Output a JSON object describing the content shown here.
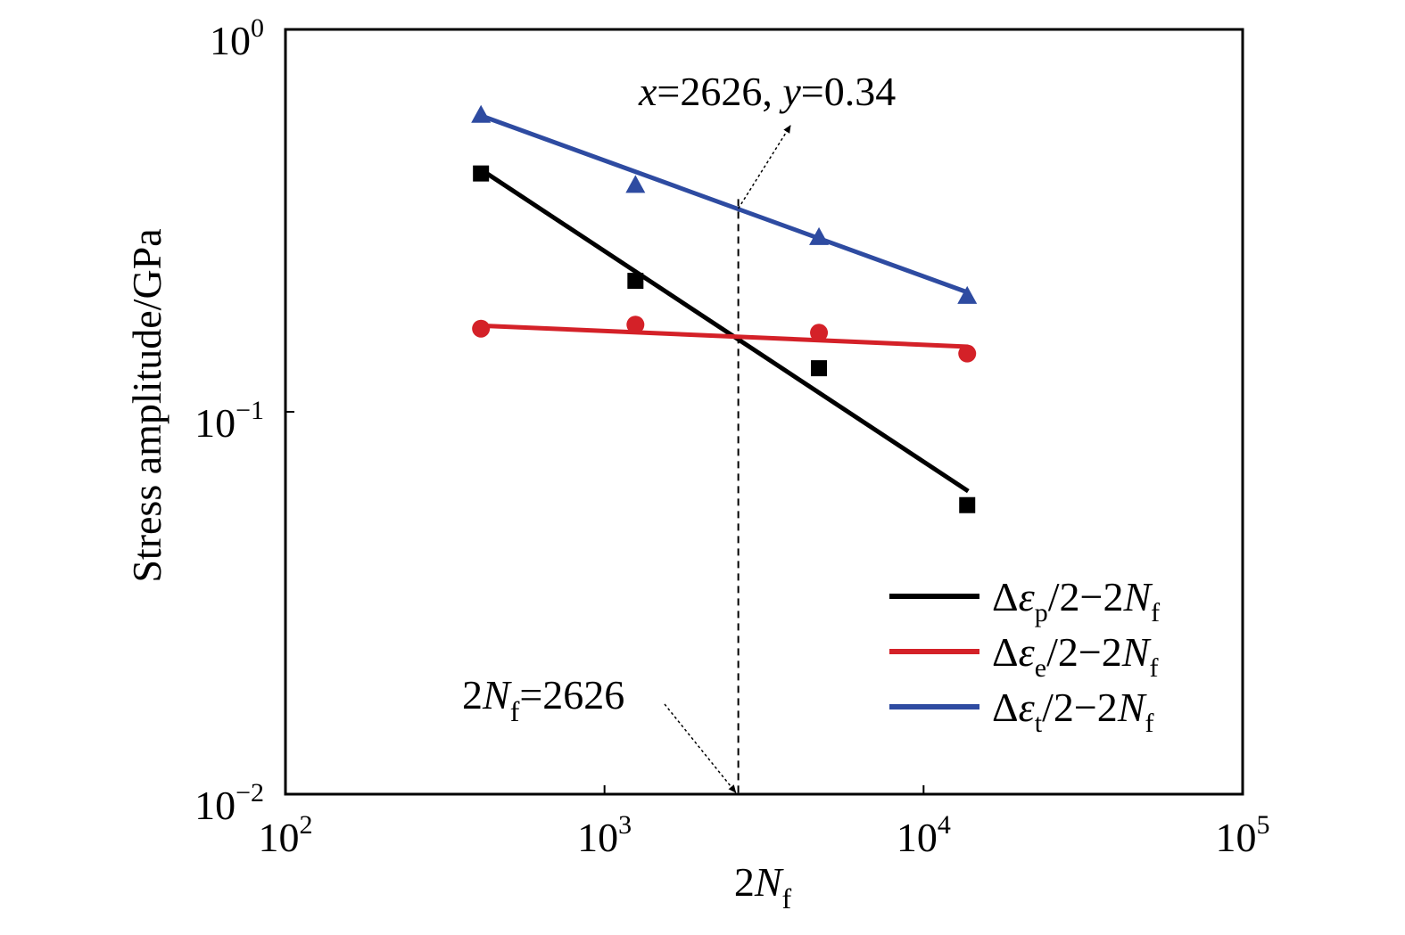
{
  "chart_data": {
    "type": "scatter",
    "xscale": "log",
    "yscale": "log",
    "xlim": [
      100,
      100000
    ],
    "ylim": [
      0.01,
      1
    ],
    "xlabel": "2N_f",
    "ylabel": "Stress amplitude/GPa",
    "xticks": [
      {
        "value": 100,
        "base": "10",
        "exp": "2"
      },
      {
        "value": 1000,
        "base": "10",
        "exp": "3"
      },
      {
        "value": 10000,
        "base": "10",
        "exp": "4"
      },
      {
        "value": 100000,
        "base": "10",
        "exp": "5"
      }
    ],
    "yticks": [
      {
        "value": 1,
        "base": "10",
        "exp": "0"
      },
      {
        "value": 0.1,
        "base": "10",
        "exp": "−1"
      },
      {
        "value": 0.01,
        "base": "10",
        "exp": "−2"
      }
    ],
    "series": [
      {
        "name": "Δεp/2−2Nf",
        "legend": {
          "pre": "Δ",
          "eps": "ε",
          "sub": "p",
          "mid": "/2−2",
          "N": "N",
          "nsub": "f"
        },
        "color": "#000000",
        "marker": "square",
        "x": [
          410,
          1250,
          4700,
          13700
        ],
        "y": [
          0.42,
          0.22,
          0.13,
          0.057
        ],
        "fit": {
          "x": [
            410,
            13800
          ],
          "y": [
            0.43,
            0.062
          ]
        }
      },
      {
        "name": "Δεe/2−2Nf",
        "legend": {
          "pre": "Δ",
          "eps": "ε",
          "sub": "e",
          "mid": "/2−2",
          "N": "N",
          "nsub": "f"
        },
        "color": "#d42128",
        "marker": "circle",
        "x": [
          410,
          1250,
          4700,
          13700
        ],
        "y": [
          0.165,
          0.169,
          0.161,
          0.142
        ],
        "fit": {
          "x": [
            410,
            13800
          ],
          "y": [
            0.168,
            0.148
          ]
        }
      },
      {
        "name": "Δεt/2−2Nf",
        "legend": {
          "pre": "Δ",
          "eps": "ε",
          "sub": "t",
          "mid": "/2−2",
          "N": "N",
          "nsub": "f"
        },
        "color": "#2e4ba1",
        "marker": "triangle",
        "x": [
          410,
          1250,
          4700,
          13700
        ],
        "y": [
          0.595,
          0.39,
          0.285,
          0.2
        ],
        "fit": {
          "x": [
            410,
            13800
          ],
          "y": [
            0.595,
            0.205
          ]
        }
      }
    ],
    "vline": {
      "x": 2626
    },
    "annotations": [
      {
        "text": "x=2626, y=0.34",
        "parts": {
          "x": "x",
          "eqx": "=2626, ",
          "y": "y",
          "eqy": "=0.34"
        },
        "point": [
          2626,
          0.34
        ]
      },
      {
        "text": "2Nf=2626",
        "parts": {
          "pre": "2",
          "N": "N",
          "sub": "f",
          "post": "=2626"
        },
        "point": [
          2626,
          0.01
        ]
      }
    ],
    "legend_position": "bottom-right",
    "grid": false
  }
}
